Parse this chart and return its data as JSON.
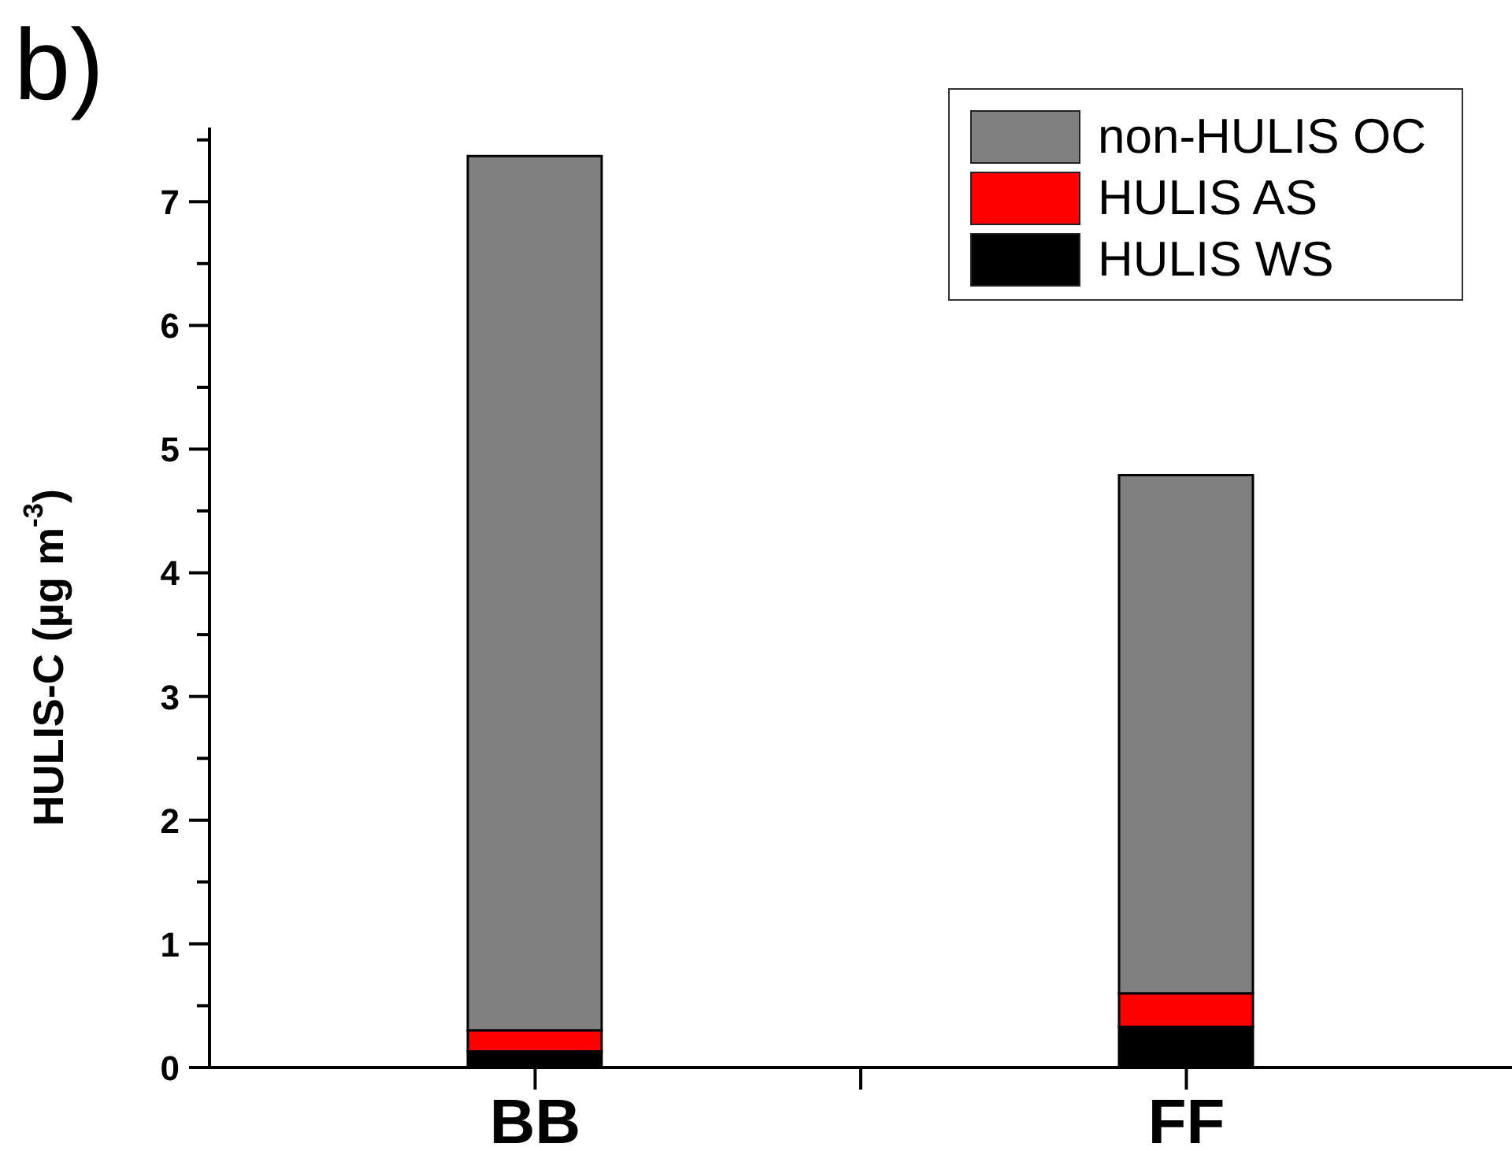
{
  "chart_data": {
    "type": "bar",
    "title": "b)",
    "ylabel": "HULIS-C (µg m$^{-3}$)",
    "categories": [
      "BB",
      "FF"
    ],
    "stacked": true,
    "legend": "top right",
    "series": [
      {
        "name": "HULIS WS",
        "color": "#000000",
        "values": [
          0.13,
          0.33
        ]
      },
      {
        "name": "HULIS AS",
        "color": "#ff0000",
        "values": [
          0.17,
          0.27
        ]
      },
      {
        "name": "non-HULIS OC",
        "color": "#808080",
        "values": [
          7.07,
          4.19
        ]
      }
    ],
    "ylim": [
      0,
      7.6
    ],
    "yticks": [
      0,
      {
        "value": 0.5,
        "label": null
      },
      1,
      {
        "value": 1.5,
        "label": null
      },
      2,
      {
        "value": 2.5,
        "label": null
      },
      3,
      {
        "value": 3.5,
        "label": null
      },
      4,
      {
        "value": 4.5,
        "label": null
      },
      5,
      {
        "value": 5.5,
        "label": null
      },
      6,
      {
        "value": 6.5,
        "label": null
      },
      7,
      {
        "value": 7.5,
        "label": null
      }
    ]
  }
}
